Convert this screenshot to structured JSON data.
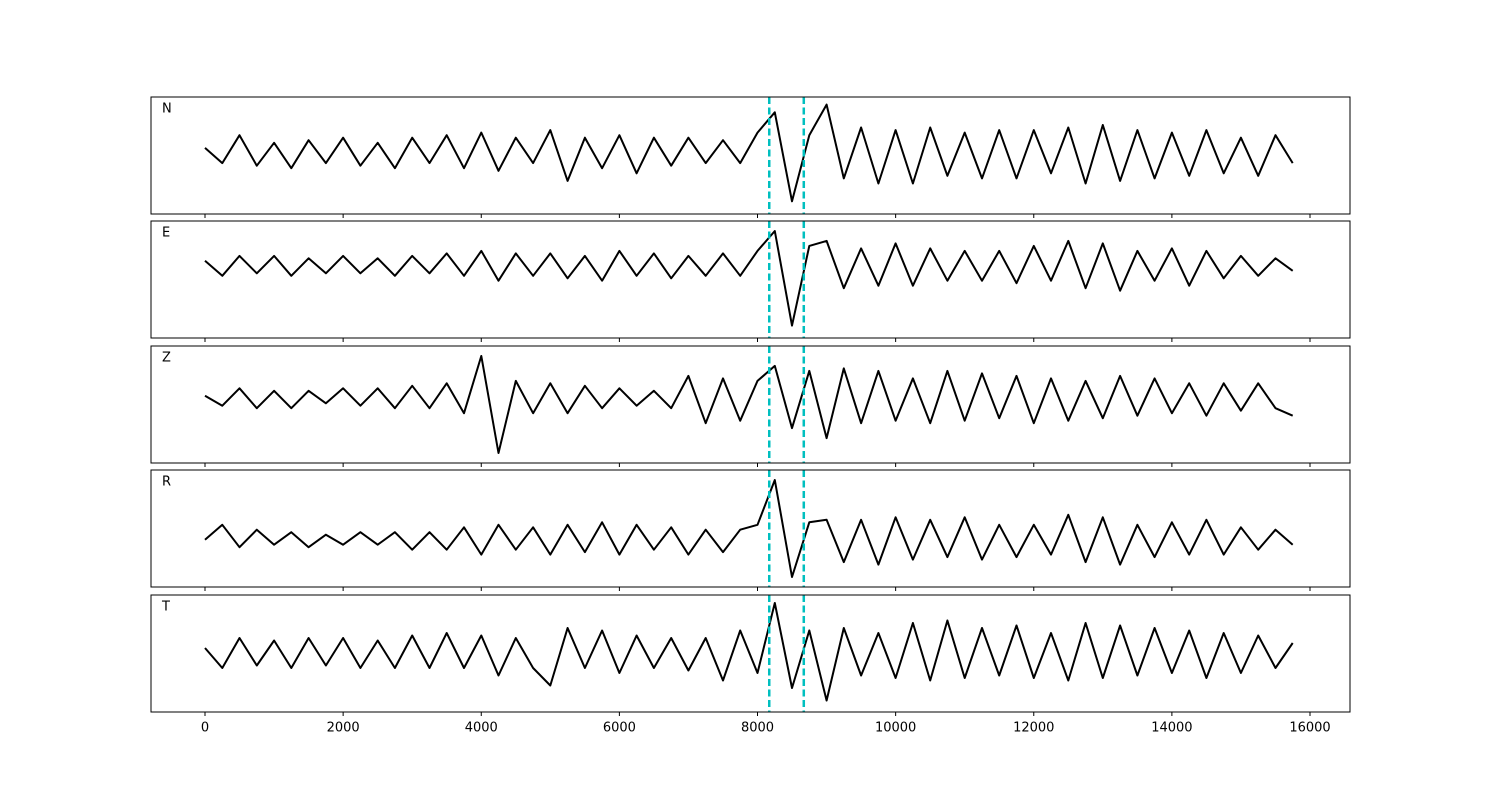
{
  "chart_data": [
    {
      "type": "line",
      "annotation": "N",
      "color": "#000000",
      "x": [
        0,
        250,
        500,
        750,
        1000,
        1250,
        1500,
        1750,
        2000,
        2250,
        2500,
        2750,
        3000,
        3250,
        3500,
        3750,
        4000,
        4250,
        4500,
        4750,
        5000,
        5250,
        5500,
        5750,
        6000,
        6250,
        6500,
        6750,
        7000,
        7250,
        7500,
        7750,
        8000,
        8250,
        8500,
        8750,
        9000,
        9250,
        9500,
        9750,
        10000,
        10250,
        10500,
        10750,
        11000,
        11250,
        11500,
        11750,
        12000,
        12250,
        12500,
        12750,
        13000,
        13250,
        13500,
        13750,
        14000,
        14250,
        14500,
        14750,
        15000,
        15250,
        15500,
        15750
      ],
      "values": [
        0.1,
        -0.2,
        0.35,
        -0.25,
        0.2,
        -0.3,
        0.25,
        -0.2,
        0.3,
        -0.25,
        0.2,
        -0.3,
        0.3,
        -0.2,
        0.35,
        -0.3,
        0.4,
        -0.35,
        0.3,
        -0.2,
        0.45,
        -0.55,
        0.3,
        -0.3,
        0.35,
        -0.4,
        0.3,
        -0.25,
        0.3,
        -0.2,
        0.25,
        -0.2,
        0.4,
        0.8,
        -0.95,
        0.35,
        0.95,
        -0.5,
        0.5,
        -0.6,
        0.45,
        -0.6,
        0.5,
        -0.45,
        0.4,
        -0.5,
        0.45,
        -0.5,
        0.45,
        -0.4,
        0.5,
        -0.6,
        0.55,
        -0.55,
        0.45,
        -0.5,
        0.4,
        -0.45,
        0.45,
        -0.4,
        0.3,
        -0.45,
        0.35,
        -0.2
      ],
      "xlim": [
        -782,
        16579
      ],
      "xticks": [
        0,
        2000,
        4000,
        6000,
        8000,
        10000,
        12000,
        14000,
        16000
      ],
      "ylim": [
        -1.2,
        1.1
      ],
      "vlines": [
        8170,
        8670
      ],
      "vline_color": "#00bfbf"
    },
    {
      "type": "line",
      "annotation": "E",
      "color": "#000000",
      "x": [
        0,
        250,
        500,
        750,
        1000,
        1250,
        1500,
        1750,
        2000,
        2250,
        2500,
        2750,
        3000,
        3250,
        3500,
        3750,
        4000,
        4250,
        4500,
        4750,
        5000,
        5250,
        5500,
        5750,
        6000,
        6250,
        6500,
        6750,
        7000,
        7250,
        7500,
        7750,
        8000,
        8250,
        8500,
        8750,
        9000,
        9250,
        9500,
        9750,
        10000,
        10250,
        10500,
        10750,
        11000,
        11250,
        11500,
        11750,
        12000,
        12250,
        12500,
        12750,
        13000,
        13250,
        13500,
        13750,
        14000,
        14250,
        14500,
        14750,
        15000,
        15250,
        15500,
        15750
      ],
      "values": [
        0.1,
        -0.2,
        0.2,
        -0.15,
        0.2,
        -0.2,
        0.15,
        -0.15,
        0.2,
        -0.15,
        0.15,
        -0.2,
        0.2,
        -0.15,
        0.25,
        -0.2,
        0.3,
        -0.3,
        0.25,
        -0.2,
        0.25,
        -0.25,
        0.2,
        -0.3,
        0.3,
        -0.2,
        0.25,
        -0.25,
        0.2,
        -0.2,
        0.25,
        -0.2,
        0.3,
        0.7,
        -1.2,
        0.4,
        0.5,
        -0.45,
        0.35,
        -0.4,
        0.45,
        -0.4,
        0.35,
        -0.3,
        0.3,
        -0.3,
        0.3,
        -0.35,
        0.4,
        -0.3,
        0.5,
        -0.45,
        0.45,
        -0.5,
        0.3,
        -0.3,
        0.35,
        -0.4,
        0.3,
        -0.25,
        0.2,
        -0.2,
        0.15,
        -0.1
      ],
      "xlim": [
        -782,
        16579
      ],
      "xticks": [
        0,
        2000,
        4000,
        6000,
        8000,
        10000,
        12000,
        14000,
        16000
      ],
      "ylim": [
        -1.45,
        0.9
      ],
      "vlines": [
        8170,
        8670
      ],
      "vline_color": "#00bfbf"
    },
    {
      "type": "line",
      "annotation": "Z",
      "color": "#000000",
      "x": [
        0,
        250,
        500,
        750,
        1000,
        1250,
        1500,
        1750,
        2000,
        2250,
        2500,
        2750,
        3000,
        3250,
        3500,
        3750,
        4000,
        4250,
        4500,
        4750,
        5000,
        5250,
        5500,
        5750,
        6000,
        6250,
        6500,
        6750,
        7000,
        7250,
        7500,
        7750,
        8000,
        8250,
        8500,
        8750,
        9000,
        9250,
        9500,
        9750,
        10000,
        10250,
        10500,
        10750,
        11000,
        11250,
        11500,
        11750,
        12000,
        12250,
        12500,
        12750,
        13000,
        13250,
        13500,
        13750,
        14000,
        14250,
        14500,
        14750,
        15000,
        15250,
        15500,
        15750
      ],
      "values": [
        0.05,
        -0.15,
        0.2,
        -0.2,
        0.15,
        -0.2,
        0.15,
        -0.1,
        0.2,
        -0.15,
        0.2,
        -0.2,
        0.25,
        -0.2,
        0.3,
        -0.3,
        0.85,
        -1.1,
        0.35,
        -0.3,
        0.3,
        -0.3,
        0.25,
        -0.2,
        0.2,
        -0.15,
        0.15,
        -0.2,
        0.45,
        -0.5,
        0.4,
        -0.45,
        0.35,
        0.65,
        -0.6,
        0.55,
        -0.8,
        0.6,
        -0.5,
        0.55,
        -0.45,
        0.4,
        -0.5,
        0.55,
        -0.45,
        0.5,
        -0.4,
        0.45,
        -0.5,
        0.4,
        -0.45,
        0.35,
        -0.4,
        0.45,
        -0.35,
        0.4,
        -0.3,
        0.3,
        -0.35,
        0.3,
        -0.25,
        0.3,
        -0.2,
        -0.35
      ],
      "xlim": [
        -782,
        16579
      ],
      "xticks": [
        0,
        2000,
        4000,
        6000,
        8000,
        10000,
        12000,
        14000,
        16000
      ],
      "ylim": [
        -1.3,
        1.05
      ],
      "vlines": [
        8170,
        8670
      ],
      "vline_color": "#00bfbf"
    },
    {
      "type": "line",
      "annotation": "R",
      "color": "#000000",
      "x": [
        0,
        250,
        500,
        750,
        1000,
        1250,
        1500,
        1750,
        2000,
        2250,
        2500,
        2750,
        3000,
        3250,
        3500,
        3750,
        4000,
        4250,
        4500,
        4750,
        5000,
        5250,
        5500,
        5750,
        6000,
        6250,
        6500,
        6750,
        7000,
        7250,
        7500,
        7750,
        8000,
        8250,
        8500,
        8750,
        9000,
        9250,
        9500,
        9750,
        10000,
        10250,
        10500,
        10750,
        11000,
        11250,
        11500,
        11750,
        12000,
        12250,
        12500,
        12750,
        13000,
        13250,
        13500,
        13750,
        14000,
        14250,
        14500,
        14750,
        15000,
        15250,
        15500,
        15750
      ],
      "values": [
        0.0,
        0.3,
        -0.15,
        0.2,
        -0.1,
        0.15,
        -0.15,
        0.1,
        -0.1,
        0.15,
        -0.1,
        0.15,
        -0.2,
        0.15,
        -0.2,
        0.25,
        -0.3,
        0.3,
        -0.2,
        0.25,
        -0.3,
        0.3,
        -0.25,
        0.35,
        -0.3,
        0.3,
        -0.2,
        0.25,
        -0.3,
        0.2,
        -0.25,
        0.2,
        0.3,
        1.2,
        -0.75,
        0.35,
        0.4,
        -0.45,
        0.4,
        -0.5,
        0.45,
        -0.4,
        0.4,
        -0.35,
        0.45,
        -0.4,
        0.3,
        -0.35,
        0.3,
        -0.3,
        0.5,
        -0.45,
        0.45,
        -0.5,
        0.3,
        -0.35,
        0.35,
        -0.3,
        0.4,
        -0.3,
        0.25,
        -0.2,
        0.2,
        -0.1
      ],
      "xlim": [
        -782,
        16579
      ],
      "xticks": [
        0,
        2000,
        4000,
        6000,
        8000,
        10000,
        12000,
        14000,
        16000
      ],
      "ylim": [
        -0.95,
        1.4
      ],
      "vlines": [
        8170,
        8670
      ],
      "vline_color": "#00bfbf"
    },
    {
      "type": "line",
      "annotation": "T",
      "color": "#000000",
      "x": [
        0,
        250,
        500,
        750,
        1000,
        1250,
        1500,
        1750,
        2000,
        2250,
        2500,
        2750,
        3000,
        3250,
        3500,
        3750,
        4000,
        4250,
        4500,
        4750,
        5000,
        5250,
        5500,
        5750,
        6000,
        6250,
        6500,
        6750,
        7000,
        7250,
        7500,
        7750,
        8000,
        8250,
        8500,
        8750,
        9000,
        9250,
        9500,
        9750,
        10000,
        10250,
        10500,
        10750,
        11000,
        11250,
        11500,
        11750,
        12000,
        12250,
        12500,
        12750,
        13000,
        13250,
        13500,
        13750,
        14000,
        14250,
        14500,
        14750,
        15000,
        15250,
        15500,
        15750
      ],
      "values": [
        0.1,
        -0.3,
        0.3,
        -0.25,
        0.25,
        -0.3,
        0.3,
        -0.25,
        0.3,
        -0.3,
        0.25,
        -0.3,
        0.35,
        -0.3,
        0.4,
        -0.3,
        0.35,
        -0.45,
        0.3,
        -0.3,
        -0.65,
        0.5,
        -0.3,
        0.45,
        -0.4,
        0.35,
        -0.3,
        0.3,
        -0.35,
        0.3,
        -0.55,
        0.45,
        -0.4,
        1.0,
        -0.7,
        0.45,
        -0.95,
        0.5,
        -0.45,
        0.4,
        -0.5,
        0.6,
        -0.55,
        0.65,
        -0.5,
        0.5,
        -0.45,
        0.55,
        -0.5,
        0.4,
        -0.55,
        0.6,
        -0.5,
        0.55,
        -0.45,
        0.5,
        -0.4,
        0.45,
        -0.5,
        0.4,
        -0.4,
        0.35,
        -0.3,
        0.2
      ],
      "xlim": [
        -782,
        16579
      ],
      "xticks": [
        0,
        2000,
        4000,
        6000,
        8000,
        10000,
        12000,
        14000,
        16000
      ],
      "ylim": [
        -1.18,
        1.16
      ],
      "vlines": [
        8170,
        8670
      ],
      "vline_color": "#00bfbf"
    }
  ]
}
